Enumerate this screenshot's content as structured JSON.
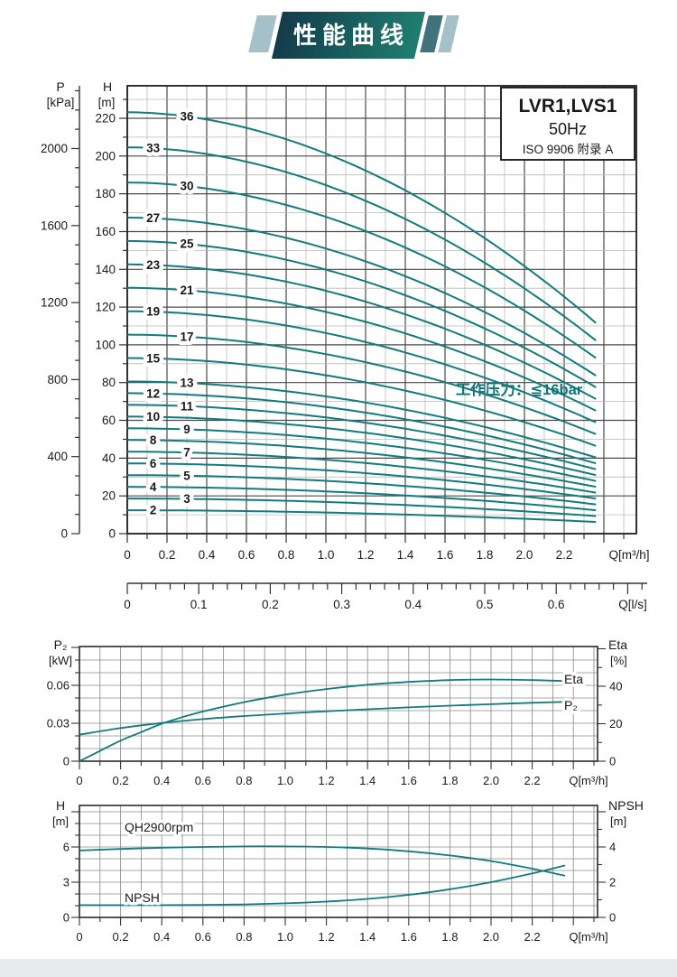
{
  "banner": {
    "title": "性能曲线",
    "gradient_left": "#133b4b",
    "gradient_right": "#1f7e70",
    "accent_light": "#a6c0c9",
    "accent_dark": "#41737f"
  },
  "colors": {
    "curve": "#117b7e",
    "grid_major": "#4a4a4a",
    "grid_minor": "#b9b9b9",
    "grid_mid": "#8c8c8c",
    "border": "#1c1c1c",
    "tick": "#333333",
    "text": "#1a1a1a",
    "note": "#0d7578"
  },
  "chart_data": [
    {
      "type": "line",
      "name": "main-qh-curves",
      "legend": {
        "line1": "LVR1,LVS1",
        "line2": "50Hz",
        "line3": "ISO 9906  附录 A"
      },
      "note": "工作压力：≦16bar",
      "pressure_axis": {
        "title": "P",
        "unit": "[kPa]",
        "ticks": [
          "0",
          "400",
          "800",
          "1200",
          "1600",
          "2000"
        ]
      },
      "head_axis": {
        "title": "H",
        "unit": "[m]",
        "ticks": [
          "0",
          "20",
          "40",
          "60",
          "80",
          "100",
          "120",
          "140",
          "160",
          "180",
          "200",
          "220"
        ]
      },
      "x_axis": {
        "label": "Q[m³/h]",
        "ticks": [
          "0",
          "0.2",
          "0.4",
          "0.6",
          "0.8",
          "1.0",
          "1.2",
          "1.4",
          "1.6",
          "1.8",
          "2.0",
          "2.2"
        ]
      },
      "x2_axis": {
        "label": "Q[l/s]",
        "ticks": [
          "0",
          "0.1",
          "0.2",
          "0.3",
          "0.4",
          "0.5",
          "0.6"
        ]
      },
      "xlim": [
        0,
        2.56
      ],
      "ylim_head_m": [
        0,
        237
      ],
      "curve_model": {
        "q_end": 2.36,
        "head_droop_at_qend": 0.5,
        "shape_exponent": 1.9
      },
      "stages": [
        {
          "label": "2",
          "h0_m": 12.4,
          "label_q": 0.13
        },
        {
          "label": "3",
          "h0_m": 18.6,
          "label_q": 0.3
        },
        {
          "label": "4",
          "h0_m": 24.8,
          "label_q": 0.13
        },
        {
          "label": "5",
          "h0_m": 31.0,
          "label_q": 0.3
        },
        {
          "label": "6",
          "h0_m": 37.2,
          "label_q": 0.13
        },
        {
          "label": "7",
          "h0_m": 43.4,
          "label_q": 0.3
        },
        {
          "label": "8",
          "h0_m": 49.6,
          "label_q": 0.13
        },
        {
          "label": "9",
          "h0_m": 55.8,
          "label_q": 0.3
        },
        {
          "label": "10",
          "h0_m": 62.0,
          "label_q": 0.13
        },
        {
          "label": "11",
          "h0_m": 68.2,
          "label_q": 0.3
        },
        {
          "label": "12",
          "h0_m": 74.4,
          "label_q": 0.13
        },
        {
          "label": "13",
          "h0_m": 80.6,
          "label_q": 0.3
        },
        {
          "label": "15",
          "h0_m": 93.0,
          "label_q": 0.13
        },
        {
          "label": "17",
          "h0_m": 105.4,
          "label_q": 0.3
        },
        {
          "label": "19",
          "h0_m": 117.8,
          "label_q": 0.13
        },
        {
          "label": "21",
          "h0_m": 130.2,
          "label_q": 0.3
        },
        {
          "label": "23",
          "h0_m": 142.6,
          "label_q": 0.13
        },
        {
          "label": "25",
          "h0_m": 155.0,
          "label_q": 0.3
        },
        {
          "label": "27",
          "h0_m": 167.4,
          "label_q": 0.13
        },
        {
          "label": "30",
          "h0_m": 186.0,
          "label_q": 0.3
        },
        {
          "label": "33",
          "h0_m": 204.6,
          "label_q": 0.13
        },
        {
          "label": "36",
          "h0_m": 223.2,
          "label_q": 0.3
        }
      ]
    },
    {
      "type": "line",
      "name": "power-efficiency",
      "left_axis": {
        "title": "P₂",
        "unit": "[kW]",
        "ticks": [
          "0",
          "0.03",
          "0.06"
        ],
        "lim": [
          0,
          0.091
        ]
      },
      "right_axis": {
        "title": "Eta",
        "unit": "[%]",
        "ticks": [
          "0",
          "20",
          "40"
        ],
        "lim": [
          0,
          61
        ]
      },
      "x_axis": {
        "label": "Q[m³/h]",
        "ticks": [
          "0",
          "0.2",
          "0.4",
          "0.6",
          "0.8",
          "1.0",
          "1.2",
          "1.4",
          "1.6",
          "1.8",
          "2.0",
          "2.2"
        ]
      },
      "xlim": [
        0,
        2.52
      ],
      "series": [
        {
          "name": "Eta",
          "label": "Eta",
          "axis": "right",
          "x": [
            0,
            0.1,
            0.2,
            0.3,
            0.4,
            0.5,
            0.6,
            0.8,
            1.0,
            1.2,
            1.4,
            1.6,
            1.8,
            2.0,
            2.2,
            2.36
          ],
          "y": [
            0,
            5.5,
            11,
            15.5,
            20,
            23.5,
            26.5,
            31.5,
            35.5,
            38.5,
            40.8,
            42.3,
            43.3,
            43.6,
            43.3,
            42.8
          ]
        },
        {
          "name": "P2",
          "label": "P₂",
          "axis": "left",
          "x": [
            0,
            0.2,
            0.4,
            0.6,
            0.8,
            1.0,
            1.2,
            1.4,
            1.6,
            1.8,
            2.0,
            2.2,
            2.36
          ],
          "y": [
            0.021,
            0.0262,
            0.0302,
            0.0333,
            0.0357,
            0.0377,
            0.0395,
            0.0411,
            0.0426,
            0.0439,
            0.0451,
            0.0462,
            0.0469
          ]
        }
      ]
    },
    {
      "type": "line",
      "name": "qh-npsh",
      "left_axis": {
        "title": "H",
        "unit": "[m]",
        "ticks": [
          "0",
          "3",
          "6"
        ],
        "lim": [
          0,
          9.5
        ]
      },
      "right_axis": {
        "title": "NPSH",
        "unit": "[m]",
        "ticks": [
          "0",
          "2",
          "4"
        ],
        "lim": [
          0,
          6.3
        ]
      },
      "x_axis": {
        "label": "Q[m³/h]",
        "ticks": [
          "0",
          "0.2",
          "0.4",
          "0.6",
          "0.8",
          "1.0",
          "1.2",
          "1.4",
          "1.6",
          "1.8",
          "2.0",
          "2.2"
        ]
      },
      "xlim": [
        0,
        2.52
      ],
      "series": [
        {
          "name": "QH2900rpm",
          "label": "QH2900rpm",
          "axis": "left",
          "x": [
            0,
            0.2,
            0.4,
            0.6,
            0.8,
            1.0,
            1.2,
            1.4,
            1.6,
            1.8,
            2.0,
            2.2,
            2.36
          ],
          "y": [
            5.7,
            5.83,
            5.93,
            6.0,
            6.05,
            6.05,
            6.0,
            5.87,
            5.63,
            5.28,
            4.8,
            4.15,
            3.55
          ]
        },
        {
          "name": "NPSH",
          "label": "NPSH",
          "axis": "right",
          "x": [
            0,
            0.2,
            0.4,
            0.6,
            0.8,
            1.0,
            1.2,
            1.4,
            1.6,
            1.8,
            2.0,
            2.2,
            2.36
          ],
          "y": [
            0.7,
            0.7,
            0.7,
            0.71,
            0.74,
            0.8,
            0.9,
            1.05,
            1.28,
            1.6,
            2.0,
            2.5,
            2.95
          ]
        }
      ]
    }
  ]
}
